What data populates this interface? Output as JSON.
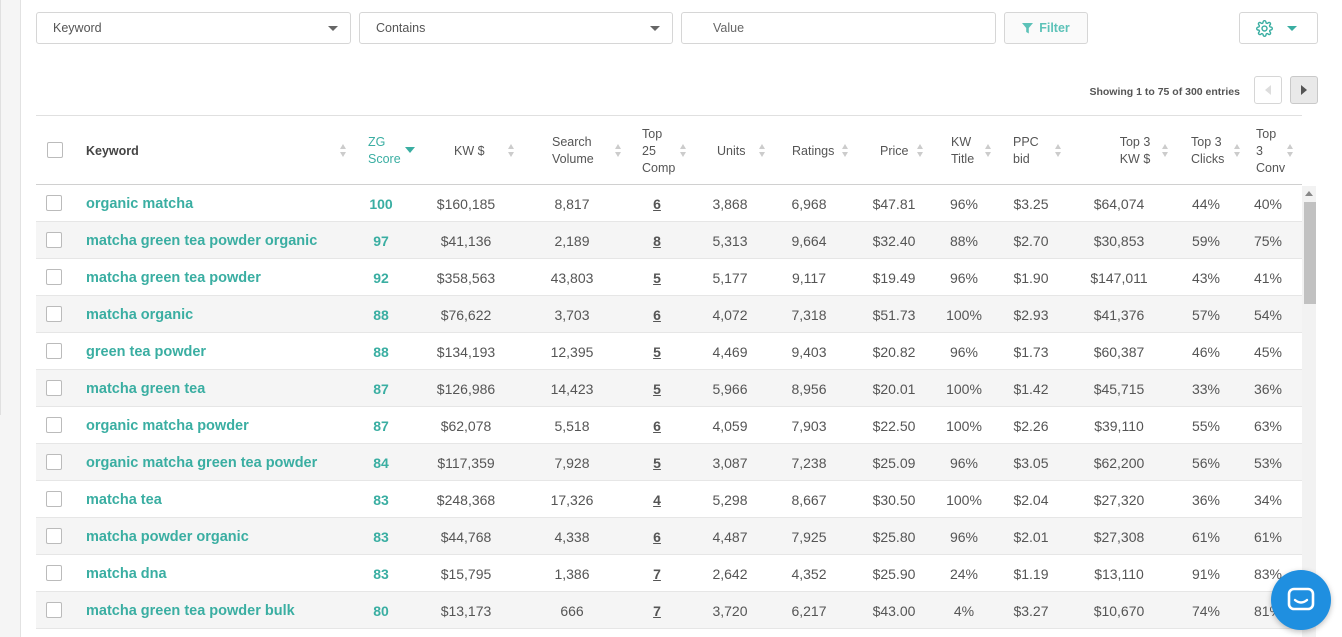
{
  "filters": {
    "field": "Keyword",
    "operator": "Contains",
    "value_placeholder": "Value",
    "filter_label": "Filter"
  },
  "pagination": {
    "info": "Showing 1 to 75 of 300 entries"
  },
  "columns": {
    "keyword": "Keyword",
    "zg_score_1": "ZG",
    "zg_score_2": "Score",
    "kw_dollar": "KW $",
    "search_volume_1": "Search",
    "search_volume_2": "Volume",
    "top25_1": "Top",
    "top25_2": "25",
    "top25_3": "Comp",
    "units": "Units",
    "ratings": "Ratings",
    "price": "Price",
    "kw_title_1": "KW",
    "kw_title_2": "Title",
    "ppc_1": "PPC",
    "ppc_2": "bid",
    "top3kw_1": "Top 3",
    "top3kw_2": "KW $",
    "top3clicks_1": "Top 3",
    "top3clicks_2": "Clicks",
    "top3conv_1": "Top",
    "top3conv_2": "3",
    "top3conv_3": "Conv"
  },
  "rows": [
    {
      "keyword": "organic matcha",
      "zg": "100",
      "kw": "$160,185",
      "sv": "8,817",
      "comp": "6",
      "units": "3,868",
      "ratings": "6,968",
      "price": "$47.81",
      "title": "96%",
      "ppc": "$3.25",
      "top3kw": "$64,074",
      "clicks": "44%",
      "conv": "40%"
    },
    {
      "keyword": "matcha green tea powder organic",
      "zg": "97",
      "kw": "$41,136",
      "sv": "2,189",
      "comp": "8",
      "units": "5,313",
      "ratings": "9,664",
      "price": "$32.40",
      "title": "88%",
      "ppc": "$2.70",
      "top3kw": "$30,853",
      "clicks": "59%",
      "conv": "75%"
    },
    {
      "keyword": "matcha green tea powder",
      "zg": "92",
      "kw": "$358,563",
      "sv": "43,803",
      "comp": "5",
      "units": "5,177",
      "ratings": "9,117",
      "price": "$19.49",
      "title": "96%",
      "ppc": "$1.90",
      "top3kw": "$147,011",
      "clicks": "43%",
      "conv": "41%"
    },
    {
      "keyword": "matcha organic",
      "zg": "88",
      "kw": "$76,622",
      "sv": "3,703",
      "comp": "6",
      "units": "4,072",
      "ratings": "7,318",
      "price": "$51.73",
      "title": "100%",
      "ppc": "$2.93",
      "top3kw": "$41,376",
      "clicks": "57%",
      "conv": "54%"
    },
    {
      "keyword": "green tea powder",
      "zg": "88",
      "kw": "$134,193",
      "sv": "12,395",
      "comp": "5",
      "units": "4,469",
      "ratings": "9,403",
      "price": "$20.82",
      "title": "96%",
      "ppc": "$1.73",
      "top3kw": "$60,387",
      "clicks": "46%",
      "conv": "45%"
    },
    {
      "keyword": "matcha green tea",
      "zg": "87",
      "kw": "$126,986",
      "sv": "14,423",
      "comp": "5",
      "units": "5,966",
      "ratings": "8,956",
      "price": "$20.01",
      "title": "100%",
      "ppc": "$1.42",
      "top3kw": "$45,715",
      "clicks": "33%",
      "conv": "36%"
    },
    {
      "keyword": "organic matcha powder",
      "zg": "87",
      "kw": "$62,078",
      "sv": "5,518",
      "comp": "6",
      "units": "4,059",
      "ratings": "7,903",
      "price": "$22.50",
      "title": "100%",
      "ppc": "$2.26",
      "top3kw": "$39,110",
      "clicks": "55%",
      "conv": "63%"
    },
    {
      "keyword": "organic matcha green tea powder",
      "zg": "84",
      "kw": "$117,359",
      "sv": "7,928",
      "comp": "5",
      "units": "3,087",
      "ratings": "7,238",
      "price": "$25.09",
      "title": "96%",
      "ppc": "$3.05",
      "top3kw": "$62,200",
      "clicks": "56%",
      "conv": "53%"
    },
    {
      "keyword": "matcha tea",
      "zg": "83",
      "kw": "$248,368",
      "sv": "17,326",
      "comp": "4",
      "units": "5,298",
      "ratings": "8,667",
      "price": "$30.50",
      "title": "100%",
      "ppc": "$2.04",
      "top3kw": "$27,320",
      "clicks": "36%",
      "conv": "34%"
    },
    {
      "keyword": "matcha powder organic",
      "zg": "83",
      "kw": "$44,768",
      "sv": "4,338",
      "comp": "6",
      "units": "4,487",
      "ratings": "7,925",
      "price": "$25.80",
      "title": "96%",
      "ppc": "$2.01",
      "top3kw": "$27,308",
      "clicks": "61%",
      "conv": "61%"
    },
    {
      "keyword": "matcha dna",
      "zg": "83",
      "kw": "$15,795",
      "sv": "1,386",
      "comp": "7",
      "units": "2,642",
      "ratings": "4,352",
      "price": "$25.90",
      "title": "24%",
      "ppc": "$1.19",
      "top3kw": "$13,110",
      "clicks": "91%",
      "conv": "83%"
    },
    {
      "keyword": "matcha green tea powder bulk",
      "zg": "80",
      "kw": "$13,173",
      "sv": "666",
      "comp": "7",
      "units": "3,720",
      "ratings": "6,217",
      "price": "$43.00",
      "title": "4%",
      "ppc": "$3.27",
      "top3kw": "$10,670",
      "clicks": "74%",
      "conv": "81%"
    }
  ]
}
